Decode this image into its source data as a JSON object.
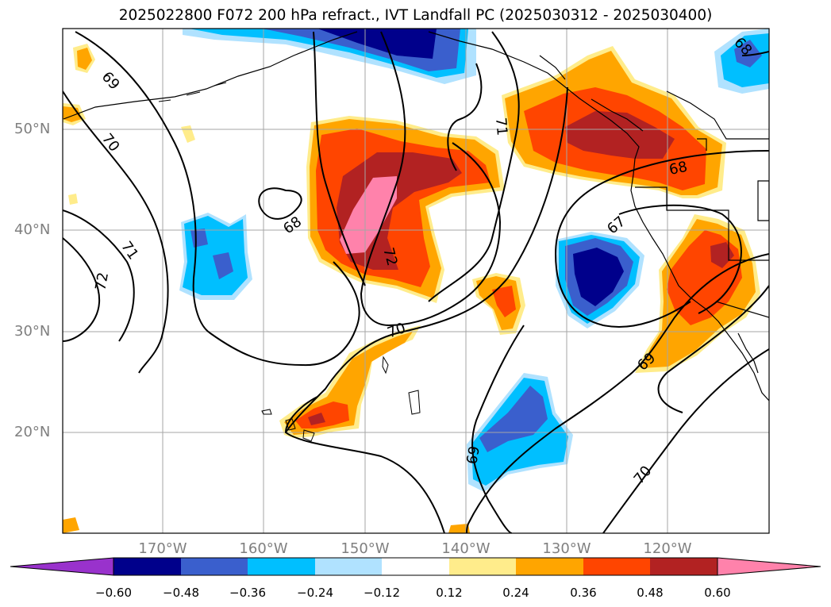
{
  "title": "2025022800 F072 200 hPa refract., IVT Landfall PC (2025030312 - 2025030400)",
  "map": {
    "projection": "PlateCarree",
    "lon_range_deg": [
      -180,
      -110
    ],
    "lat_range_deg": [
      10,
      60
    ],
    "gridlines": true,
    "lat_labels": [
      "50°N",
      "40°N",
      "30°N",
      "20°N"
    ],
    "lon_labels": [
      "170°W",
      "160°W",
      "150°W",
      "140°W",
      "130°W",
      "120°W"
    ],
    "contour_labels": [
      "69",
      "70",
      "71",
      "68",
      "72",
      "71",
      "70",
      "68",
      "67",
      "69",
      "69",
      "70",
      "72",
      "68"
    ]
  },
  "colorbar": {
    "extend": "both",
    "tick_labels": [
      "−0.60",
      "−0.48",
      "−0.36",
      "−0.24",
      "−0.12",
      "0.12",
      "0.24",
      "0.36",
      "0.48",
      "0.60"
    ],
    "colors": [
      "#9932cc",
      "#00008b",
      "#3a5fcd",
      "#00bfff",
      "#b0e2ff",
      "#ffffff",
      "#ffec8b",
      "#ffa500",
      "#ff4500",
      "#b22222",
      "#ff82ab"
    ]
  }
}
